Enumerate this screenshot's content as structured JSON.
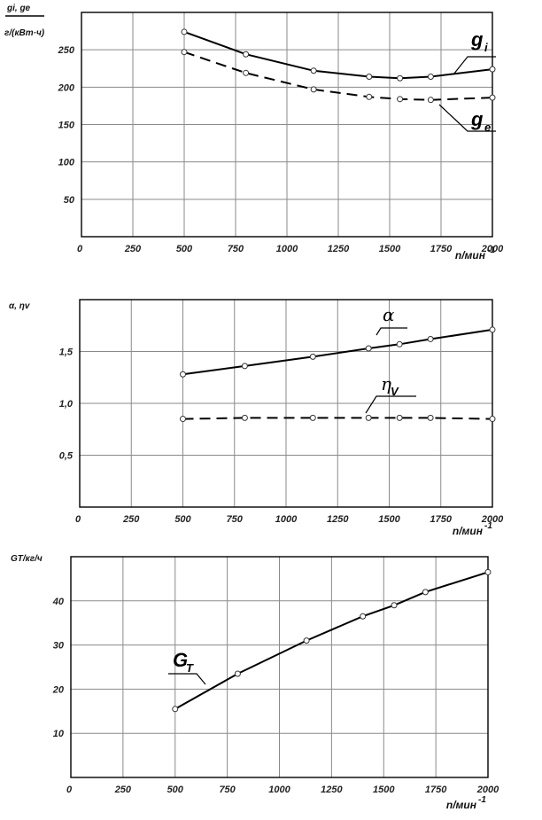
{
  "chart_data": [
    {
      "type": "line",
      "ylabel_top": "gi, ge",
      "ylabel_bottom": "г/(кВт·ч)",
      "xlabel": "n/мин",
      "xlabel_sup": "-1",
      "xlim": [
        0,
        2000
      ],
      "ylim": [
        0,
        300
      ],
      "xticks": [
        0,
        250,
        500,
        750,
        1000,
        1250,
        1500,
        1750,
        2000
      ],
      "yticks": [
        50,
        100,
        150,
        200,
        250
      ],
      "grid": true,
      "series": [
        {
          "name": "g",
          "sub": "i",
          "style": "solid",
          "points": [
            [
              500,
              274
            ],
            [
              800,
              244
            ],
            [
              1130,
              222
            ],
            [
              1400,
              214
            ],
            [
              1550,
              212
            ],
            [
              1700,
              214
            ],
            [
              2000,
              224
            ]
          ]
        },
        {
          "name": "g",
          "sub": "e",
          "style": "dashed",
          "points": [
            [
              500,
              247
            ],
            [
              800,
              219
            ],
            [
              1130,
              197
            ],
            [
              1400,
              187
            ],
            [
              1550,
              184
            ],
            [
              1700,
              183
            ],
            [
              2000,
              186
            ]
          ]
        }
      ]
    },
    {
      "type": "line",
      "ylabel": "α, ηv",
      "xlabel": "n/мин",
      "xlabel_sup": "-1",
      "xlim": [
        0,
        2000
      ],
      "ylim": [
        0,
        2.0
      ],
      "xticks": [
        0,
        250,
        500,
        750,
        1000,
        1250,
        1500,
        1750,
        2000
      ],
      "yticks": [
        "0,5",
        "1,0",
        "1,5"
      ],
      "grid": true,
      "series": [
        {
          "name": "α",
          "sub": "",
          "style": "solid",
          "points": [
            [
              500,
              1.28
            ],
            [
              800,
              1.36
            ],
            [
              1130,
              1.45
            ],
            [
              1400,
              1.53
            ],
            [
              1550,
              1.57
            ],
            [
              1700,
              1.62
            ],
            [
              2000,
              1.71
            ]
          ]
        },
        {
          "name": "η",
          "sub": "V",
          "style": "dashed",
          "points": [
            [
              500,
              0.85
            ],
            [
              800,
              0.86
            ],
            [
              1130,
              0.86
            ],
            [
              1400,
              0.86
            ],
            [
              1550,
              0.86
            ],
            [
              1700,
              0.86
            ],
            [
              2000,
              0.85
            ]
          ]
        }
      ]
    },
    {
      "type": "line",
      "ylabel": "GT/кг/ч",
      "xlabel": "n/мин",
      "xlabel_sup": "-1",
      "xlim": [
        0,
        2000
      ],
      "ylim": [
        0,
        50
      ],
      "xticks": [
        0,
        250,
        500,
        750,
        1000,
        1250,
        1500,
        1750,
        2000
      ],
      "yticks": [
        10,
        20,
        30,
        40
      ],
      "grid": true,
      "series": [
        {
          "name": "G",
          "sub": "T",
          "style": "solid",
          "points": [
            [
              500,
              15.5
            ],
            [
              800,
              23.5
            ],
            [
              1130,
              31
            ],
            [
              1400,
              36.5
            ],
            [
              1550,
              39
            ],
            [
              1700,
              42
            ],
            [
              2000,
              46.5
            ]
          ]
        }
      ]
    }
  ]
}
